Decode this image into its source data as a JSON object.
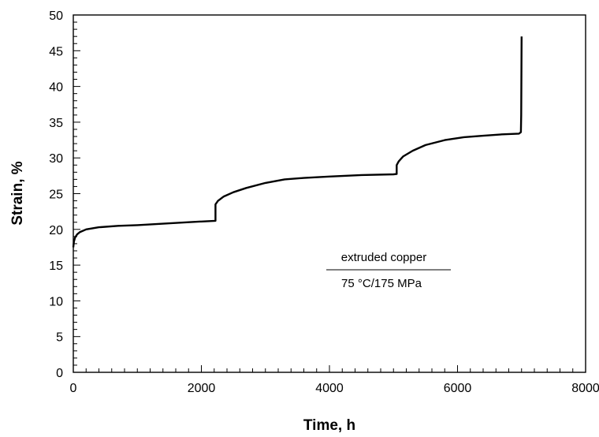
{
  "chart_data": {
    "type": "line",
    "title": "",
    "xlabel": "Time, h",
    "ylabel": "Strain, %",
    "xlim": [
      0,
      8000
    ],
    "ylim": [
      0,
      50
    ],
    "x_ticks": [
      "0",
      "2000",
      "4000",
      "6000",
      "8000"
    ],
    "y_ticks": [
      "0",
      "5",
      "10",
      "15",
      "20",
      "25",
      "30",
      "35",
      "40",
      "45",
      "50"
    ],
    "grid": false,
    "legend": "none",
    "annotation": {
      "line1": "extruded copper",
      "line2": "75 °C/175 MPa"
    },
    "series": [
      {
        "color": "#000000",
        "points": [
          [
            0,
            17.5
          ],
          [
            10,
            18.3
          ],
          [
            30,
            18.9
          ],
          [
            60,
            19.3
          ],
          [
            100,
            19.6
          ],
          [
            200,
            20.0
          ],
          [
            400,
            20.3
          ],
          [
            700,
            20.5
          ],
          [
            1000,
            20.6
          ],
          [
            1400,
            20.8
          ],
          [
            1800,
            21.0
          ],
          [
            2100,
            21.15
          ],
          [
            2220,
            21.2
          ],
          [
            2220,
            23.5
          ],
          [
            2260,
            24.0
          ],
          [
            2350,
            24.6
          ],
          [
            2500,
            25.2
          ],
          [
            2700,
            25.8
          ],
          [
            3000,
            26.5
          ],
          [
            3300,
            27.0
          ],
          [
            3600,
            27.2
          ],
          [
            4000,
            27.4
          ],
          [
            4500,
            27.6
          ],
          [
            5000,
            27.7
          ],
          [
            5050,
            27.75
          ],
          [
            5050,
            29.0
          ],
          [
            5080,
            29.5
          ],
          [
            5150,
            30.2
          ],
          [
            5300,
            31.0
          ],
          [
            5500,
            31.8
          ],
          [
            5800,
            32.5
          ],
          [
            6100,
            32.9
          ],
          [
            6400,
            33.1
          ],
          [
            6700,
            33.3
          ],
          [
            6960,
            33.4
          ],
          [
            6990,
            33.6
          ],
          [
            6995,
            36.0
          ],
          [
            7000,
            47.0
          ]
        ]
      }
    ]
  }
}
